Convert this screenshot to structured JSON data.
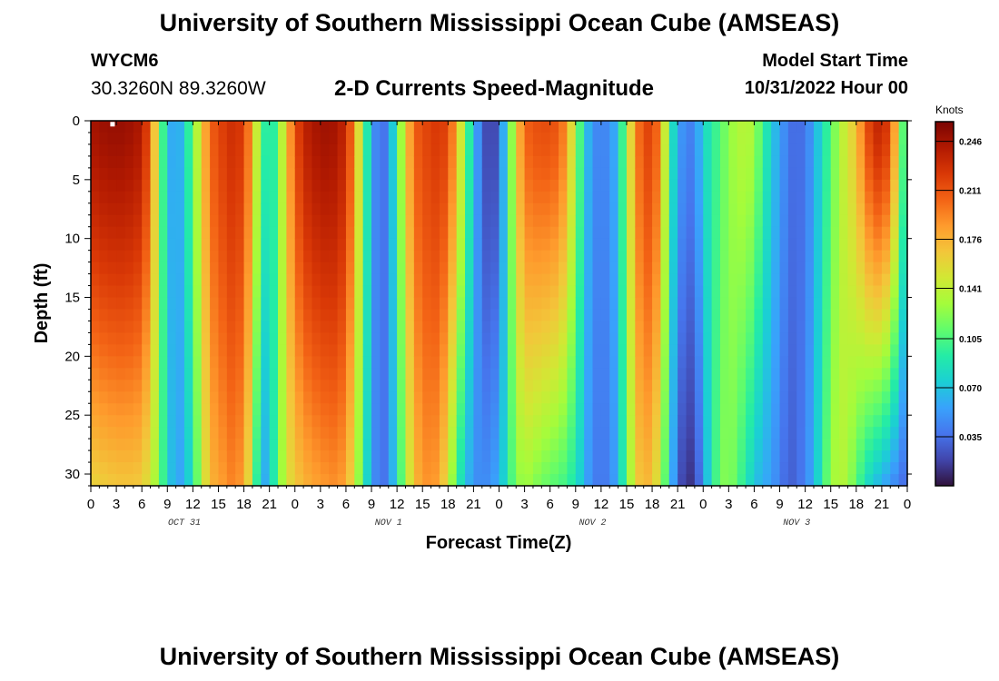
{
  "header": {
    "title": "University of Southern Mississippi Ocean Cube (AMSEAS)",
    "station_id": "WYCM6",
    "coordinates": "30.3260N  89.3260W",
    "plot_title": "2-D Currents Speed-Magnitude",
    "model_start_label": "Model Start Time",
    "model_start_value": "10/31/2022 Hour 00"
  },
  "footer": {
    "title": "University of Southern Mississippi Ocean Cube (AMSEAS)"
  },
  "chart_data": {
    "type": "heatmap",
    "title": "2-D Currents Speed-Magnitude",
    "xlabel": "Forecast Time(Z)",
    "ylabel": "Depth (ft)",
    "x_ticks": [
      "0",
      "3",
      "6",
      "9",
      "12",
      "15",
      "18",
      "21",
      "0",
      "3",
      "6",
      "9",
      "12",
      "15",
      "18",
      "21",
      "0",
      "3",
      "6",
      "9",
      "12",
      "15",
      "18",
      "21",
      "0",
      "3",
      "6",
      "9",
      "12",
      "15",
      "18",
      "21",
      "0"
    ],
    "x_range_hours": [
      0,
      96
    ],
    "day_labels": [
      {
        "label": "OCT 31",
        "hour": 11
      },
      {
        "label": "NOV 1",
        "hour": 35
      },
      {
        "label": "NOV 2",
        "hour": 59
      },
      {
        "label": "NOV 3",
        "hour": 83
      }
    ],
    "y_ticks": [
      "0",
      "5",
      "10",
      "15",
      "20",
      "25",
      "30"
    ],
    "y_range_ft": [
      0,
      31
    ],
    "colorbar": {
      "units": "Knots",
      "range": [
        0.0,
        0.26
      ],
      "ticks": [
        "0.246",
        "0.211",
        "0.176",
        "0.141",
        "0.105",
        "0.070",
        "0.035"
      ],
      "tick_values": [
        0.246,
        0.211,
        0.176,
        0.141,
        0.105,
        0.07,
        0.035
      ],
      "palette": [
        "#30123b",
        "#4145ab",
        "#4675ed",
        "#39a2fc",
        "#1bcfd4",
        "#24eca6",
        "#61fc6c",
        "#a4fc3b",
        "#d1e834",
        "#f3c63a",
        "#fe9b2d",
        "#f36315",
        "#d93806",
        "#b11901",
        "#7a0403"
      ]
    },
    "profiles": [
      {
        "hour": 0,
        "surface": 0.245,
        "bottom": 0.16
      },
      {
        "hour": 2,
        "surface": 0.25,
        "bottom": 0.165
      },
      {
        "hour": 4,
        "surface": 0.25,
        "bottom": 0.168
      },
      {
        "hour": 6,
        "surface": 0.242,
        "bottom": 0.165
      },
      {
        "hour": 7,
        "surface": 0.205,
        "bottom": 0.148
      },
      {
        "hour": 8,
        "surface": 0.13,
        "bottom": 0.12
      },
      {
        "hour": 9,
        "surface": 0.07,
        "bottom": 0.08
      },
      {
        "hour": 10,
        "surface": 0.05,
        "bottom": 0.055
      },
      {
        "hour": 11,
        "surface": 0.075,
        "bottom": 0.06
      },
      {
        "hour": 12,
        "surface": 0.115,
        "bottom": 0.09
      },
      {
        "hour": 13,
        "surface": 0.16,
        "bottom": 0.135
      },
      {
        "hour": 14,
        "surface": 0.205,
        "bottom": 0.175
      },
      {
        "hour": 15,
        "surface": 0.215,
        "bottom": 0.18
      },
      {
        "hour": 16,
        "surface": 0.225,
        "bottom": 0.19
      },
      {
        "hour": 17,
        "surface": 0.23,
        "bottom": 0.195
      },
      {
        "hour": 18,
        "surface": 0.218,
        "bottom": 0.18
      },
      {
        "hour": 19,
        "surface": 0.18,
        "bottom": 0.14
      },
      {
        "hour": 20,
        "surface": 0.11,
        "bottom": 0.05
      },
      {
        "hour": 21,
        "surface": 0.08,
        "bottom": 0.07
      },
      {
        "hour": 22,
        "surface": 0.11,
        "bottom": 0.11
      },
      {
        "hour": 23,
        "surface": 0.17,
        "bottom": 0.15
      },
      {
        "hour": 24,
        "surface": 0.21,
        "bottom": 0.165
      },
      {
        "hour": 25,
        "surface": 0.235,
        "bottom": 0.175
      },
      {
        "hour": 27,
        "surface": 0.248,
        "bottom": 0.185
      },
      {
        "hour": 29,
        "surface": 0.245,
        "bottom": 0.19
      },
      {
        "hour": 30,
        "surface": 0.23,
        "bottom": 0.18
      },
      {
        "hour": 31,
        "surface": 0.19,
        "bottom": 0.15
      },
      {
        "hour": 32,
        "surface": 0.12,
        "bottom": 0.1
      },
      {
        "hour": 33,
        "surface": 0.06,
        "bottom": 0.055
      },
      {
        "hour": 34,
        "surface": 0.03,
        "bottom": 0.035
      },
      {
        "hour": 35,
        "surface": 0.045,
        "bottom": 0.04
      },
      {
        "hour": 36,
        "surface": 0.1,
        "bottom": 0.085
      },
      {
        "hour": 37,
        "surface": 0.16,
        "bottom": 0.13
      },
      {
        "hour": 38,
        "surface": 0.205,
        "bottom": 0.17
      },
      {
        "hour": 39,
        "surface": 0.215,
        "bottom": 0.185
      },
      {
        "hour": 40,
        "surface": 0.22,
        "bottom": 0.19
      },
      {
        "hour": 41,
        "surface": 0.225,
        "bottom": 0.18
      },
      {
        "hour": 42,
        "surface": 0.215,
        "bottom": 0.15
      },
      {
        "hour": 43,
        "surface": 0.18,
        "bottom": 0.1
      },
      {
        "hour": 44,
        "surface": 0.12,
        "bottom": 0.07
      },
      {
        "hour": 45,
        "surface": 0.07,
        "bottom": 0.05
      },
      {
        "hour": 46,
        "surface": 0.03,
        "bottom": 0.045
      },
      {
        "hour": 47,
        "surface": 0.012,
        "bottom": 0.05
      },
      {
        "hour": 48,
        "surface": 0.03,
        "bottom": 0.06
      },
      {
        "hour": 49,
        "surface": 0.09,
        "bottom": 0.09
      },
      {
        "hour": 50,
        "surface": 0.16,
        "bottom": 0.12
      },
      {
        "hour": 51,
        "surface": 0.205,
        "bottom": 0.13
      },
      {
        "hour": 53,
        "surface": 0.215,
        "bottom": 0.115
      },
      {
        "hour": 55,
        "surface": 0.21,
        "bottom": 0.105
      },
      {
        "hour": 56,
        "surface": 0.185,
        "bottom": 0.1
      },
      {
        "hour": 57,
        "surface": 0.13,
        "bottom": 0.085
      },
      {
        "hour": 58,
        "surface": 0.08,
        "bottom": 0.065
      },
      {
        "hour": 59,
        "surface": 0.045,
        "bottom": 0.04
      },
      {
        "hour": 61,
        "surface": 0.045,
        "bottom": 0.04
      },
      {
        "hour": 62,
        "surface": 0.07,
        "bottom": 0.065
      },
      {
        "hour": 63,
        "surface": 0.13,
        "bottom": 0.11
      },
      {
        "hour": 64,
        "surface": 0.19,
        "bottom": 0.16
      },
      {
        "hour": 65,
        "surface": 0.215,
        "bottom": 0.175
      },
      {
        "hour": 66,
        "surface": 0.22,
        "bottom": 0.17
      },
      {
        "hour": 67,
        "surface": 0.19,
        "bottom": 0.14
      },
      {
        "hour": 68,
        "surface": 0.1,
        "bottom": 0.08
      },
      {
        "hour": 69,
        "surface": 0.06,
        "bottom": 0.03
      },
      {
        "hour": 70,
        "surface": 0.04,
        "bottom": 0.01
      },
      {
        "hour": 71,
        "surface": 0.045,
        "bottom": 0.015
      },
      {
        "hour": 72,
        "surface": 0.075,
        "bottom": 0.05
      },
      {
        "hour": 73,
        "surface": 0.095,
        "bottom": 0.09
      },
      {
        "hour": 74,
        "surface": 0.105,
        "bottom": 0.115
      },
      {
        "hour": 75,
        "surface": 0.125,
        "bottom": 0.125
      },
      {
        "hour": 77,
        "surface": 0.14,
        "bottom": 0.09
      },
      {
        "hour": 78,
        "surface": 0.13,
        "bottom": 0.07
      },
      {
        "hour": 79,
        "surface": 0.1,
        "bottom": 0.06
      },
      {
        "hour": 80,
        "surface": 0.075,
        "bottom": 0.055
      },
      {
        "hour": 81,
        "surface": 0.055,
        "bottom": 0.04
      },
      {
        "hour": 82,
        "surface": 0.04,
        "bottom": 0.03
      },
      {
        "hour": 83,
        "surface": 0.03,
        "bottom": 0.03
      },
      {
        "hour": 84,
        "surface": 0.04,
        "bottom": 0.045
      },
      {
        "hour": 85,
        "surface": 0.055,
        "bottom": 0.06
      },
      {
        "hour": 86,
        "surface": 0.085,
        "bottom": 0.095
      },
      {
        "hour": 87,
        "surface": 0.105,
        "bottom": 0.125
      },
      {
        "hour": 88,
        "surface": 0.135,
        "bottom": 0.14
      },
      {
        "hour": 89,
        "surface": 0.15,
        "bottom": 0.13
      },
      {
        "hour": 90,
        "surface": 0.17,
        "bottom": 0.11
      },
      {
        "hour": 91,
        "surface": 0.205,
        "bottom": 0.085
      },
      {
        "hour": 92,
        "surface": 0.23,
        "bottom": 0.07
      },
      {
        "hour": 93,
        "surface": 0.235,
        "bottom": 0.06
      },
      {
        "hour": 94,
        "surface": 0.215,
        "bottom": 0.05
      },
      {
        "hour": 95,
        "surface": 0.15,
        "bottom": 0.04
      },
      {
        "hour": 96,
        "surface": 0.07,
        "bottom": 0.03
      }
    ]
  }
}
